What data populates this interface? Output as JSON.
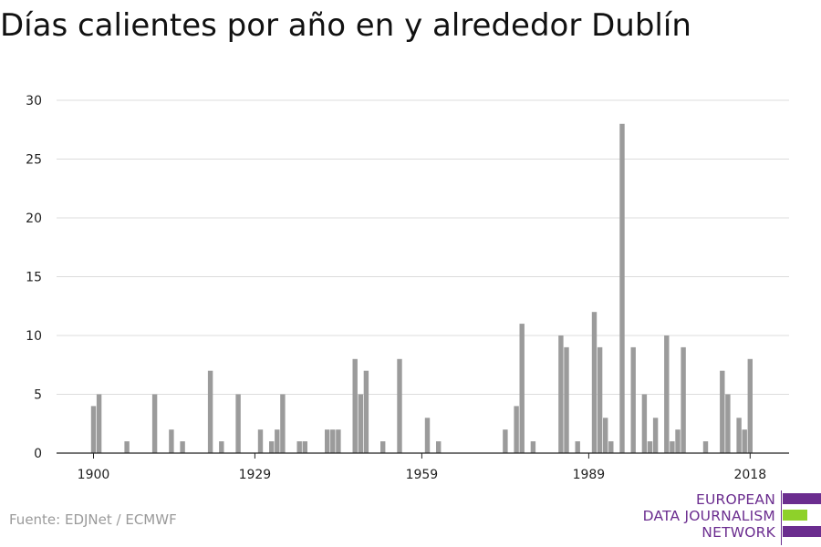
{
  "title": "Días calientes por año en y alrededor Dublín",
  "source": "Fuente: EDJNet / ECMWF",
  "logo": {
    "line1": "EUROPEAN",
    "line2": "DATA JOURNALISM",
    "line3": "NETWORK",
    "colors": {
      "purple": "#6b2d8f",
      "green": "#8ed12a"
    }
  },
  "chart_data": {
    "type": "bar",
    "title": "Días calientes por año en y alrededor Dublín",
    "xlabel": "",
    "ylabel": "",
    "xlim": [
      1900,
      2018
    ],
    "ylim": [
      0,
      30
    ],
    "x_ticks": [
      1900,
      1929,
      1959,
      1989,
      2018
    ],
    "y_ticks": [
      0,
      5,
      10,
      15,
      20,
      25,
      30
    ],
    "grid": true,
    "bar_color": "#9b9b9b",
    "points": [
      {
        "year": 1900,
        "value": 4
      },
      {
        "year": 1901,
        "value": 5
      },
      {
        "year": 1906,
        "value": 1
      },
      {
        "year": 1911,
        "value": 5
      },
      {
        "year": 1914,
        "value": 2
      },
      {
        "year": 1916,
        "value": 1
      },
      {
        "year": 1921,
        "value": 7
      },
      {
        "year": 1923,
        "value": 1
      },
      {
        "year": 1926,
        "value": 5
      },
      {
        "year": 1930,
        "value": 2
      },
      {
        "year": 1932,
        "value": 1
      },
      {
        "year": 1933,
        "value": 2
      },
      {
        "year": 1934,
        "value": 5
      },
      {
        "year": 1937,
        "value": 1
      },
      {
        "year": 1938,
        "value": 1
      },
      {
        "year": 1942,
        "value": 2
      },
      {
        "year": 1943,
        "value": 2
      },
      {
        "year": 1944,
        "value": 2
      },
      {
        "year": 1947,
        "value": 8
      },
      {
        "year": 1948,
        "value": 5
      },
      {
        "year": 1949,
        "value": 7
      },
      {
        "year": 1952,
        "value": 1
      },
      {
        "year": 1955,
        "value": 8
      },
      {
        "year": 1960,
        "value": 3
      },
      {
        "year": 1962,
        "value": 1
      },
      {
        "year": 1974,
        "value": 2
      },
      {
        "year": 1976,
        "value": 4
      },
      {
        "year": 1977,
        "value": 11
      },
      {
        "year": 1979,
        "value": 1
      },
      {
        "year": 1984,
        "value": 10
      },
      {
        "year": 1985,
        "value": 9
      },
      {
        "year": 1987,
        "value": 1
      },
      {
        "year": 1990,
        "value": 12
      },
      {
        "year": 1991,
        "value": 9
      },
      {
        "year": 1992,
        "value": 3
      },
      {
        "year": 1993,
        "value": 1
      },
      {
        "year": 1995,
        "value": 28
      },
      {
        "year": 1997,
        "value": 9
      },
      {
        "year": 1999,
        "value": 5
      },
      {
        "year": 2000,
        "value": 1
      },
      {
        "year": 2001,
        "value": 3
      },
      {
        "year": 2003,
        "value": 10
      },
      {
        "year": 2004,
        "value": 1
      },
      {
        "year": 2005,
        "value": 2
      },
      {
        "year": 2006,
        "value": 9
      },
      {
        "year": 2010,
        "value": 1
      },
      {
        "year": 2013,
        "value": 7
      },
      {
        "year": 2014,
        "value": 5
      },
      {
        "year": 2016,
        "value": 3
      },
      {
        "year": 2017,
        "value": 2
      },
      {
        "year": 2018,
        "value": 8
      }
    ]
  }
}
